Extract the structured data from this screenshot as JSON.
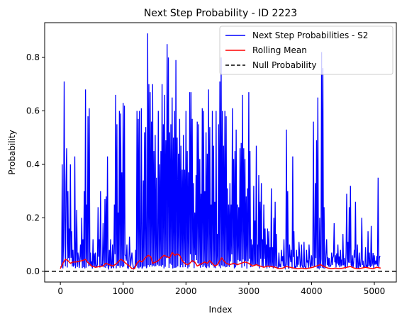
{
  "chart_data": {
    "type": "line",
    "title": "Next Step Probability - ID 2223",
    "xlabel": "Index",
    "ylabel": "Probability",
    "xlim": [
      -250,
      5350
    ],
    "ylim": [
      -0.04,
      0.93
    ],
    "x_ticks": [
      0,
      1000,
      2000,
      3000,
      4000,
      5000
    ],
    "y_ticks": [
      0.0,
      0.2,
      0.4,
      0.6,
      0.8
    ],
    "grid": false,
    "legend_position": "top-right",
    "n_points": 5100,
    "series": [
      {
        "name": "Next Step Probabilities - S2",
        "color": "#0000ff",
        "baseline": 0.01,
        "spikes": [
          [
            30,
            0.4
          ],
          [
            50,
            0.1
          ],
          [
            60,
            0.71
          ],
          [
            70,
            0.21
          ],
          [
            90,
            0.33
          ],
          [
            100,
            0.46
          ],
          [
            120,
            0.3
          ],
          [
            140,
            0.16
          ],
          [
            160,
            0.4
          ],
          [
            180,
            0.15
          ],
          [
            200,
            0.08
          ],
          [
            230,
            0.43
          ],
          [
            260,
            0.23
          ],
          [
            280,
            0.07
          ],
          [
            320,
            0.1
          ],
          [
            340,
            0.2
          ],
          [
            360,
            0.12
          ],
          [
            380,
            0.3
          ],
          [
            400,
            0.68
          ],
          [
            420,
            0.25
          ],
          [
            440,
            0.58
          ],
          [
            460,
            0.61
          ],
          [
            480,
            0.07
          ],
          [
            520,
            0.12
          ],
          [
            560,
            0.07
          ],
          [
            600,
            0.24
          ],
          [
            620,
            0.12
          ],
          [
            640,
            0.3
          ],
          [
            680,
            0.18
          ],
          [
            710,
            0.27
          ],
          [
            730,
            0.28
          ],
          [
            750,
            0.43
          ],
          [
            780,
            0.08
          ],
          [
            800,
            0.12
          ],
          [
            830,
            0.1
          ],
          [
            860,
            0.25
          ],
          [
            880,
            0.66
          ],
          [
            900,
            0.55
          ],
          [
            920,
            0.22
          ],
          [
            940,
            0.6
          ],
          [
            960,
            0.59
          ],
          [
            980,
            0.37
          ],
          [
            1000,
            0.63
          ],
          [
            1020,
            0.62
          ],
          [
            1040,
            0.06
          ],
          [
            1060,
            0.1
          ],
          [
            1100,
            0.13
          ],
          [
            1140,
            0.07
          ],
          [
            1200,
            0.08
          ],
          [
            1220,
            0.6
          ],
          [
            1240,
            0.57
          ],
          [
            1260,
            0.6
          ],
          [
            1290,
            0.61
          ],
          [
            1320,
            0.34
          ],
          [
            1340,
            0.52
          ],
          [
            1360,
            0.54
          ],
          [
            1390,
            0.89
          ],
          [
            1410,
            0.7
          ],
          [
            1430,
            0.67
          ],
          [
            1450,
            0.56
          ],
          [
            1470,
            0.7
          ],
          [
            1490,
            0.45
          ],
          [
            1510,
            0.51
          ],
          [
            1530,
            0.35
          ],
          [
            1560,
            0.6
          ],
          [
            1580,
            0.4
          ],
          [
            1600,
            0.45
          ],
          [
            1620,
            0.7
          ],
          [
            1640,
            0.55
          ],
          [
            1660,
            0.66
          ],
          [
            1680,
            0.49
          ],
          [
            1700,
            0.85
          ],
          [
            1720,
            0.8
          ],
          [
            1740,
            0.52
          ],
          [
            1760,
            0.55
          ],
          [
            1780,
            0.65
          ],
          [
            1800,
            0.5
          ],
          [
            1820,
            0.6
          ],
          [
            1840,
            0.79
          ],
          [
            1860,
            0.5
          ],
          [
            1880,
            0.44
          ],
          [
            1900,
            0.57
          ],
          [
            1920,
            0.47
          ],
          [
            1940,
            0.38
          ],
          [
            1960,
            0.51
          ],
          [
            1980,
            0.38
          ],
          [
            2000,
            0.6
          ],
          [
            2020,
            0.45
          ],
          [
            2040,
            0.37
          ],
          [
            2060,
            0.67
          ],
          [
            2080,
            0.67
          ],
          [
            2100,
            0.57
          ],
          [
            2120,
            0.33
          ],
          [
            2140,
            0.22
          ],
          [
            2160,
            0.36
          ],
          [
            2180,
            0.56
          ],
          [
            2200,
            0.55
          ],
          [
            2220,
            0.42
          ],
          [
            2240,
            0.29
          ],
          [
            2260,
            0.61
          ],
          [
            2280,
            0.6
          ],
          [
            2300,
            0.3
          ],
          [
            2320,
            0.52
          ],
          [
            2340,
            0.44
          ],
          [
            2360,
            0.68
          ],
          [
            2380,
            0.54
          ],
          [
            2400,
            0.25
          ],
          [
            2420,
            0.6
          ],
          [
            2440,
            0.47
          ],
          [
            2460,
            0.26
          ],
          [
            2480,
            0.6
          ],
          [
            2500,
            0.14
          ],
          [
            2520,
            0.55
          ],
          [
            2540,
            0.71
          ],
          [
            2560,
            0.8
          ],
          [
            2580,
            0.6
          ],
          [
            2600,
            0.47
          ],
          [
            2620,
            0.6
          ],
          [
            2640,
            0.58
          ],
          [
            2660,
            0.31
          ],
          [
            2680,
            0.25
          ],
          [
            2700,
            0.33
          ],
          [
            2720,
            0.25
          ],
          [
            2740,
            0.61
          ],
          [
            2760,
            0.42
          ],
          [
            2780,
            0.45
          ],
          [
            2800,
            0.53
          ],
          [
            2820,
            0.25
          ],
          [
            2840,
            0.24
          ],
          [
            2860,
            0.46
          ],
          [
            2880,
            0.48
          ],
          [
            2900,
            0.66
          ],
          [
            2920,
            0.46
          ],
          [
            2940,
            0.42
          ],
          [
            2960,
            0.28
          ],
          [
            2980,
            0.31
          ],
          [
            3000,
            0.67
          ],
          [
            3020,
            0.45
          ],
          [
            3040,
            0.12
          ],
          [
            3060,
            0.1
          ],
          [
            3080,
            0.32
          ],
          [
            3100,
            0.19
          ],
          [
            3120,
            0.47
          ],
          [
            3140,
            0.1
          ],
          [
            3160,
            0.36
          ],
          [
            3180,
            0.26
          ],
          [
            3200,
            0.33
          ],
          [
            3220,
            0.12
          ],
          [
            3240,
            0.25
          ],
          [
            3260,
            0.16
          ],
          [
            3280,
            0.1
          ],
          [
            3300,
            0.16
          ],
          [
            3320,
            0.15
          ],
          [
            3340,
            0.09
          ],
          [
            3360,
            0.31
          ],
          [
            3380,
            0.09
          ],
          [
            3400,
            0.2
          ],
          [
            3420,
            0.26
          ],
          [
            3440,
            0.14
          ],
          [
            3480,
            0.07
          ],
          [
            3520,
            0.08
          ],
          [
            3560,
            0.12
          ],
          [
            3600,
            0.53
          ],
          [
            3620,
            0.3
          ],
          [
            3650,
            0.1
          ],
          [
            3680,
            0.08
          ],
          [
            3700,
            0.43
          ],
          [
            3720,
            0.15
          ],
          [
            3760,
            0.08
          ],
          [
            3800,
            0.11
          ],
          [
            3840,
            0.1
          ],
          [
            3880,
            0.11
          ],
          [
            3920,
            0.08
          ],
          [
            3960,
            0.1
          ],
          [
            4000,
            0.06
          ],
          [
            4030,
            0.56
          ],
          [
            4060,
            0.33
          ],
          [
            4080,
            0.49
          ],
          [
            4100,
            0.65
          ],
          [
            4130,
            0.2
          ],
          [
            4160,
            0.82
          ],
          [
            4180,
            0.76
          ],
          [
            4200,
            0.24
          ],
          [
            4240,
            0.12
          ],
          [
            4280,
            0.05
          ],
          [
            4320,
            0.07
          ],
          [
            4360,
            0.18
          ],
          [
            4380,
            0.06
          ],
          [
            4420,
            0.1
          ],
          [
            4460,
            0.08
          ],
          [
            4500,
            0.14
          ],
          [
            4520,
            0.05
          ],
          [
            4560,
            0.29
          ],
          [
            4580,
            0.11
          ],
          [
            4600,
            0.24
          ],
          [
            4620,
            0.32
          ],
          [
            4650,
            0.06
          ],
          [
            4680,
            0.08
          ],
          [
            4700,
            0.26
          ],
          [
            4730,
            0.1
          ],
          [
            4760,
            0.07
          ],
          [
            4800,
            0.2
          ],
          [
            4820,
            0.04
          ],
          [
            4860,
            0.09
          ],
          [
            4900,
            0.15
          ],
          [
            4920,
            0.07
          ],
          [
            4950,
            0.17
          ],
          [
            4970,
            0.03
          ],
          [
            5000,
            0.06
          ],
          [
            5020,
            0.04
          ],
          [
            5060,
            0.35
          ],
          [
            5080,
            0.05
          ]
        ]
      },
      {
        "name": "Rolling Mean",
        "color": "#ff0000",
        "points": [
          [
            0,
            0.01
          ],
          [
            40,
            0.03
          ],
          [
            80,
            0.045
          ],
          [
            120,
            0.04
          ],
          [
            160,
            0.03
          ],
          [
            200,
            0.035
          ],
          [
            250,
            0.035
          ],
          [
            300,
            0.038
          ],
          [
            350,
            0.04
          ],
          [
            400,
            0.045
          ],
          [
            430,
            0.035
          ],
          [
            500,
            0.02
          ],
          [
            560,
            0.015
          ],
          [
            620,
            0.018
          ],
          [
            680,
            0.02
          ],
          [
            720,
            0.03
          ],
          [
            780,
            0.025
          ],
          [
            840,
            0.02
          ],
          [
            900,
            0.03
          ],
          [
            960,
            0.045
          ],
          [
            1000,
            0.04
          ],
          [
            1040,
            0.03
          ],
          [
            1100,
            0.02
          ],
          [
            1140,
            0.01
          ],
          [
            1180,
            0.01
          ],
          [
            1220,
            0.03
          ],
          [
            1260,
            0.04
          ],
          [
            1300,
            0.035
          ],
          [
            1350,
            0.05
          ],
          [
            1400,
            0.06
          ],
          [
            1440,
            0.055
          ],
          [
            1470,
            0.03
          ],
          [
            1520,
            0.035
          ],
          [
            1560,
            0.04
          ],
          [
            1600,
            0.05
          ],
          [
            1650,
            0.06
          ],
          [
            1700,
            0.055
          ],
          [
            1740,
            0.05
          ],
          [
            1780,
            0.07
          ],
          [
            1820,
            0.06
          ],
          [
            1860,
            0.065
          ],
          [
            1900,
            0.06
          ],
          [
            1940,
            0.04
          ],
          [
            1980,
            0.03
          ],
          [
            2020,
            0.025
          ],
          [
            2060,
            0.03
          ],
          [
            2100,
            0.04
          ],
          [
            2140,
            0.035
          ],
          [
            2180,
            0.02
          ],
          [
            2220,
            0.025
          ],
          [
            2260,
            0.03
          ],
          [
            2300,
            0.035
          ],
          [
            2340,
            0.03
          ],
          [
            2380,
            0.04
          ],
          [
            2420,
            0.03
          ],
          [
            2460,
            0.02
          ],
          [
            2500,
            0.025
          ],
          [
            2540,
            0.04
          ],
          [
            2570,
            0.05
          ],
          [
            2600,
            0.04
          ],
          [
            2640,
            0.03
          ],
          [
            2700,
            0.025
          ],
          [
            2760,
            0.03
          ],
          [
            2820,
            0.025
          ],
          [
            2880,
            0.03
          ],
          [
            2940,
            0.035
          ],
          [
            3000,
            0.03
          ],
          [
            3060,
            0.02
          ],
          [
            3120,
            0.025
          ],
          [
            3180,
            0.02
          ],
          [
            3240,
            0.015
          ],
          [
            3300,
            0.02
          ],
          [
            3360,
            0.018
          ],
          [
            3420,
            0.015
          ],
          [
            3480,
            0.01
          ],
          [
            3540,
            0.012
          ],
          [
            3600,
            0.018
          ],
          [
            3660,
            0.015
          ],
          [
            3720,
            0.012
          ],
          [
            3780,
            0.01
          ],
          [
            3840,
            0.012
          ],
          [
            3900,
            0.01
          ],
          [
            3960,
            0.012
          ],
          [
            4020,
            0.015
          ],
          [
            4080,
            0.02
          ],
          [
            4140,
            0.025
          ],
          [
            4200,
            0.018
          ],
          [
            4260,
            0.012
          ],
          [
            4320,
            0.01
          ],
          [
            4380,
            0.012
          ],
          [
            4440,
            0.01
          ],
          [
            4500,
            0.012
          ],
          [
            4560,
            0.015
          ],
          [
            4620,
            0.018
          ],
          [
            4680,
            0.012
          ],
          [
            4740,
            0.01
          ],
          [
            4800,
            0.012
          ],
          [
            4860,
            0.015
          ],
          [
            4920,
            0.012
          ],
          [
            4980,
            0.01
          ],
          [
            5040,
            0.015
          ],
          [
            5100,
            0.012
          ]
        ]
      },
      {
        "name": "Null Probability",
        "color": "#000000",
        "y": 0.0,
        "style": "dashed"
      }
    ]
  }
}
